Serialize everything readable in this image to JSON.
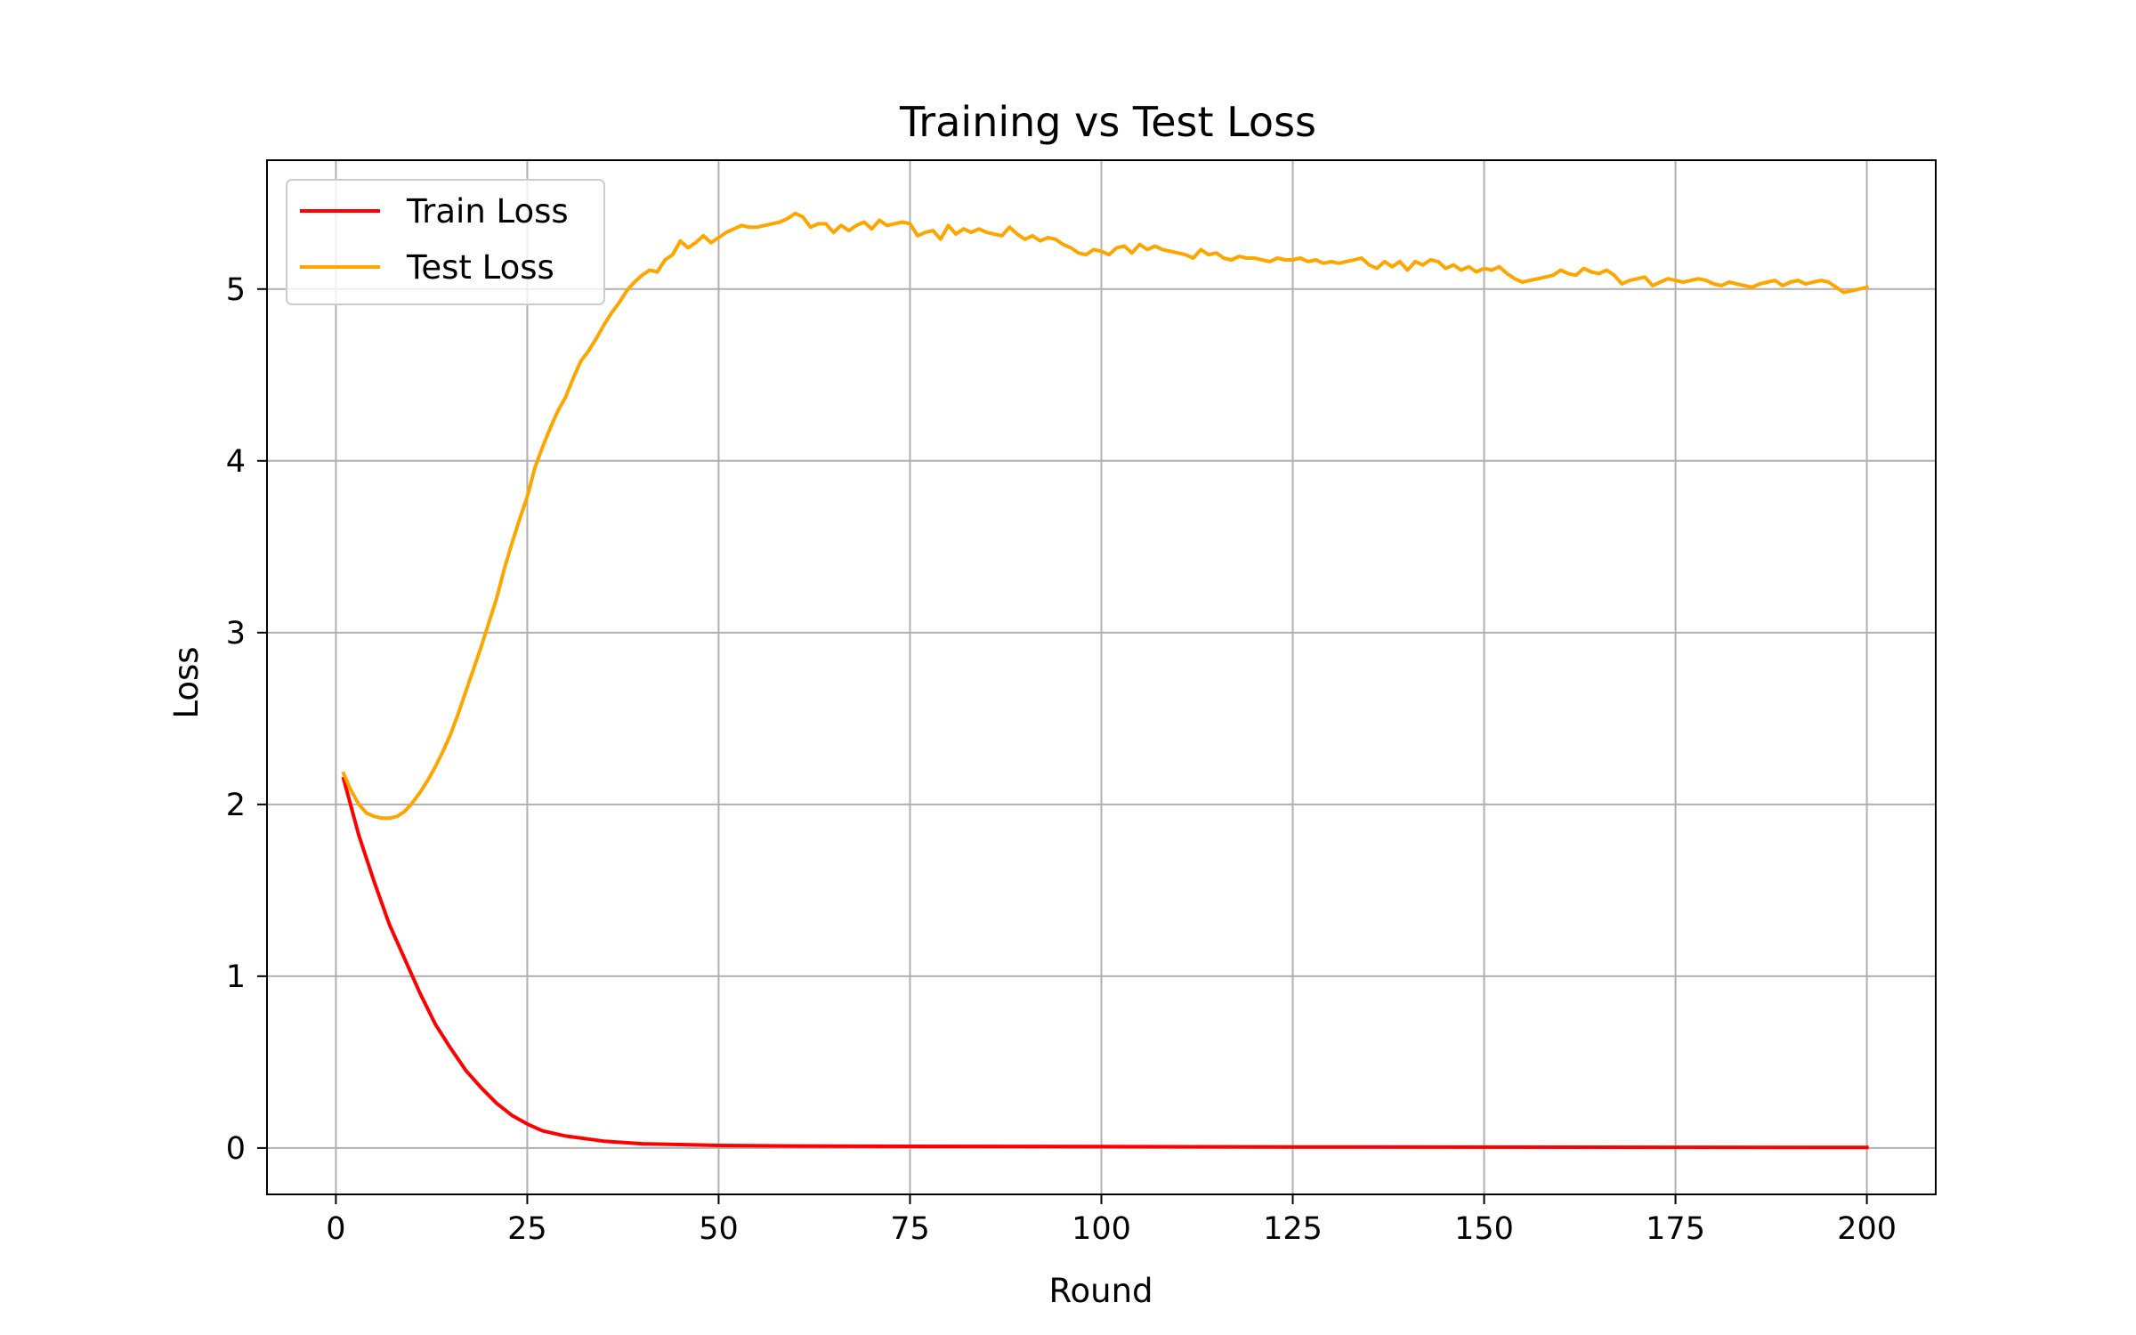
{
  "chart_data": {
    "type": "line",
    "title": "Training vs Test Loss",
    "xlabel": "Round",
    "ylabel": "Loss",
    "xlim": [
      -9,
      209
    ],
    "ylim": [
      -0.27,
      5.75
    ],
    "xticks": [
      0,
      25,
      50,
      75,
      100,
      125,
      150,
      175,
      200
    ],
    "yticks": [
      0,
      1,
      2,
      3,
      4,
      5
    ],
    "grid": true,
    "legend": "top-left",
    "series": [
      {
        "name": "Train Loss",
        "color": "#ff0000",
        "x": [
          1,
          3,
          5,
          7,
          9,
          11,
          13,
          15,
          17,
          19,
          21,
          23,
          25,
          27,
          30,
          35,
          40,
          45,
          50,
          60,
          75,
          100,
          125,
          150,
          175,
          200
        ],
        "y": [
          2.15,
          1.82,
          1.55,
          1.3,
          1.1,
          0.9,
          0.72,
          0.58,
          0.45,
          0.35,
          0.26,
          0.19,
          0.14,
          0.1,
          0.07,
          0.04,
          0.025,
          0.02,
          0.015,
          0.012,
          0.01,
          0.008,
          0.006,
          0.005,
          0.004,
          0.003
        ]
      },
      {
        "name": "Test Loss",
        "color": "#ffa500",
        "x": [
          1,
          2,
          3,
          4,
          5,
          6,
          7,
          8,
          9,
          10,
          11,
          12,
          13,
          14,
          15,
          16,
          17,
          18,
          19,
          20,
          21,
          22,
          23,
          24,
          25,
          26,
          27,
          28,
          29,
          30,
          31,
          32,
          33,
          34,
          35,
          36,
          37,
          38,
          39,
          40,
          41,
          42,
          43,
          44,
          45,
          46,
          47,
          48,
          49,
          50,
          51,
          52,
          53,
          54,
          55,
          56,
          57,
          58,
          59,
          60,
          61,
          62,
          63,
          64,
          65,
          66,
          67,
          68,
          69,
          70,
          71,
          72,
          73,
          74,
          75,
          76,
          77,
          78,
          79,
          80,
          81,
          82,
          83,
          84,
          85,
          86,
          87,
          88,
          89,
          90,
          91,
          92,
          93,
          94,
          95,
          96,
          97,
          98,
          99,
          100,
          101,
          102,
          103,
          104,
          105,
          106,
          107,
          108,
          109,
          110,
          111,
          112,
          113,
          114,
          115,
          116,
          117,
          118,
          119,
          120,
          121,
          122,
          123,
          124,
          125,
          126,
          127,
          128,
          129,
          130,
          131,
          132,
          133,
          134,
          135,
          136,
          137,
          138,
          139,
          140,
          141,
          142,
          143,
          144,
          145,
          146,
          147,
          148,
          149,
          150,
          151,
          152,
          153,
          154,
          155,
          156,
          157,
          158,
          159,
          160,
          161,
          162,
          163,
          164,
          165,
          166,
          167,
          168,
          169,
          170,
          171,
          172,
          173,
          174,
          175,
          176,
          177,
          178,
          179,
          180,
          181,
          182,
          183,
          184,
          185,
          186,
          187,
          188,
          189,
          190,
          191,
          192,
          193,
          194,
          195,
          196,
          197,
          198,
          199,
          200
        ],
        "y": [
          2.18,
          2.08,
          2.0,
          1.95,
          1.93,
          1.92,
          1.92,
          1.93,
          1.96,
          2.01,
          2.07,
          2.14,
          2.22,
          2.31,
          2.41,
          2.53,
          2.66,
          2.79,
          2.92,
          3.06,
          3.2,
          3.37,
          3.52,
          3.66,
          3.79,
          3.96,
          4.08,
          4.19,
          4.29,
          4.37,
          4.48,
          4.58,
          4.64,
          4.71,
          4.79,
          4.86,
          4.92,
          4.99,
          5.04,
          5.08,
          5.11,
          5.1,
          5.17,
          5.2,
          5.28,
          5.24,
          5.27,
          5.31,
          5.27,
          5.3,
          5.33,
          5.35,
          5.37,
          5.36,
          5.36,
          5.37,
          5.38,
          5.39,
          5.41,
          5.44,
          5.42,
          5.36,
          5.38,
          5.38,
          5.33,
          5.37,
          5.34,
          5.37,
          5.39,
          5.35,
          5.4,
          5.37,
          5.38,
          5.39,
          5.38,
          5.31,
          5.33,
          5.34,
          5.29,
          5.37,
          5.32,
          5.35,
          5.33,
          5.35,
          5.33,
          5.32,
          5.31,
          5.36,
          5.32,
          5.29,
          5.31,
          5.28,
          5.3,
          5.29,
          5.26,
          5.24,
          5.21,
          5.2,
          5.23,
          5.22,
          5.2,
          5.24,
          5.25,
          5.21,
          5.26,
          5.23,
          5.25,
          5.23,
          5.22,
          5.21,
          5.2,
          5.18,
          5.23,
          5.2,
          5.21,
          5.18,
          5.17,
          5.19,
          5.18,
          5.18,
          5.17,
          5.16,
          5.18,
          5.17,
          5.17,
          5.18,
          5.16,
          5.17,
          5.15,
          5.16,
          5.15,
          5.16,
          5.17,
          5.18,
          5.14,
          5.12,
          5.16,
          5.13,
          5.16,
          5.11,
          5.16,
          5.14,
          5.17,
          5.16,
          5.12,
          5.14,
          5.11,
          5.13,
          5.1,
          5.12,
          5.11,
          5.13,
          5.09,
          5.06,
          5.04,
          5.05,
          5.06,
          5.07,
          5.08,
          5.11,
          5.09,
          5.08,
          5.12,
          5.1,
          5.09,
          5.11,
          5.08,
          5.03,
          5.05,
          5.06,
          5.07,
          5.02,
          5.04,
          5.06,
          5.05,
          5.04,
          5.05,
          5.06,
          5.05,
          5.03,
          5.02,
          5.04,
          5.03,
          5.02,
          5.01,
          5.03,
          5.04,
          5.05,
          5.02,
          5.04,
          5.05,
          5.03,
          5.04,
          5.05,
          5.04,
          5.01,
          4.98,
          4.99,
          5.0,
          5.01
        ]
      }
    ]
  }
}
